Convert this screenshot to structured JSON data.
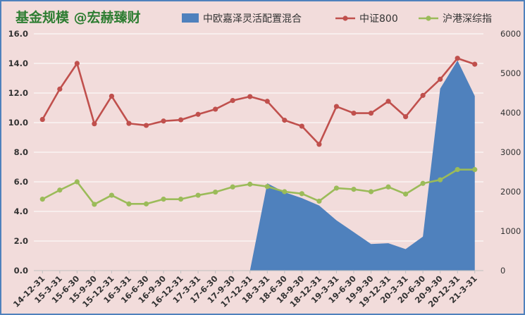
{
  "chart_data": {
    "type": "line",
    "title": "基金规模 @宏赫臻财",
    "categories": [
      "14-12-31",
      "15-3-31",
      "15-6-30",
      "15-9-30",
      "15-12-31",
      "16-3-31",
      "16-6-30",
      "16-9-30",
      "16-12-31",
      "17-3-31",
      "17-6-30",
      "17-9-30",
      "17-12-31",
      "18-3-31",
      "18-6-30",
      "18-9-30",
      "18-12-31",
      "19-3-31",
      "19-6-30",
      "19-9-30",
      "19-12-31",
      "20-3-31",
      "20-6-30",
      "20-9-30",
      "20-12-31",
      "21-3-31"
    ],
    "y_left": {
      "min": 0,
      "max": 16,
      "step": 2,
      "tick_labels": [
        "0.0",
        "2.0",
        "4.0",
        "6.0",
        "8.0",
        "10.0",
        "12.0",
        "14.0",
        "16.0"
      ]
    },
    "y_right": {
      "min": 0,
      "max": 6000,
      "step": 1000,
      "tick_labels": [
        "0",
        "1000",
        "2000",
        "3000",
        "4000",
        "5000",
        "6000"
      ]
    },
    "grid": true,
    "legend_position": "top",
    "series": [
      {
        "name": "中欧嘉泽灵活配置混合",
        "type": "area",
        "axis": "left",
        "color": "#4f81bd",
        "values": [
          null,
          null,
          null,
          null,
          null,
          null,
          null,
          null,
          null,
          null,
          null,
          null,
          0.0,
          5.9,
          5.3,
          4.9,
          4.4,
          3.4,
          2.6,
          1.8,
          1.85,
          1.45,
          2.3,
          12.3,
          14.2,
          11.8
        ]
      },
      {
        "name": "中证800",
        "type": "line",
        "axis": "right",
        "color": "#c0504d",
        "values": [
          3830,
          4600,
          5250,
          3720,
          4420,
          3730,
          3680,
          3790,
          3820,
          3960,
          4090,
          4310,
          4410,
          4290,
          3810,
          3660,
          3200,
          4160,
          3990,
          3990,
          4290,
          3900,
          4440,
          4850,
          5380,
          5230
        ]
      },
      {
        "name": "沪港深综指",
        "type": "line",
        "axis": "right",
        "color": "#9bbb59",
        "values": [
          1810,
          2040,
          2250,
          1680,
          1910,
          1690,
          1690,
          1810,
          1810,
          1910,
          1990,
          2120,
          2190,
          2130,
          2000,
          1950,
          1760,
          2090,
          2060,
          2000,
          2120,
          1940,
          2210,
          2300,
          2560,
          2560
        ]
      }
    ]
  }
}
